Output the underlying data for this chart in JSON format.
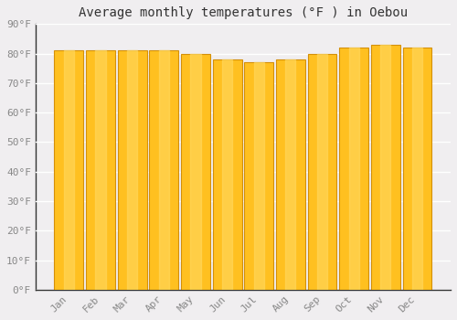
{
  "title": "Average monthly temperatures (°F ) in Oebou",
  "months": [
    "Jan",
    "Feb",
    "Mar",
    "Apr",
    "May",
    "Jun",
    "Jul",
    "Aug",
    "Sep",
    "Oct",
    "Nov",
    "Dec"
  ],
  "values": [
    81,
    81,
    81,
    81,
    80,
    78,
    77,
    78,
    80,
    82,
    83,
    82
  ],
  "bar_color_main": "#FFC020",
  "bar_color_edge": "#D4900A",
  "background_color": "#F0EEF0",
  "grid_color": "#FFFFFF",
  "ylim": [
    0,
    90
  ],
  "yticks": [
    0,
    10,
    20,
    30,
    40,
    50,
    60,
    70,
    80,
    90
  ],
  "title_fontsize": 10,
  "tick_fontsize": 8,
  "tick_color": "#888888",
  "bar_width": 0.92,
  "figsize": [
    5.0,
    3.5
  ],
  "dpi": 100
}
